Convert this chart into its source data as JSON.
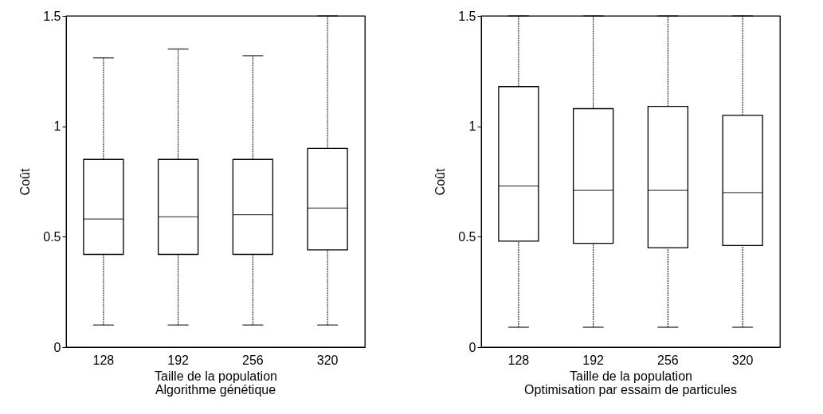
{
  "chart_data": [
    {
      "type": "box",
      "title": "Algorithme génétique",
      "xlabel": "Taille de la population",
      "ylabel": "Coût",
      "categories": [
        "128",
        "192",
        "256",
        "320"
      ],
      "boxes": [
        {
          "low": 0.1,
          "q1": 0.42,
          "median": 0.58,
          "q3": 0.85,
          "high": 1.31
        },
        {
          "low": 0.1,
          "q1": 0.42,
          "median": 0.59,
          "q3": 0.85,
          "high": 1.35
        },
        {
          "low": 0.1,
          "q1": 0.42,
          "median": 0.6,
          "q3": 0.85,
          "high": 1.32
        },
        {
          "low": 0.1,
          "q1": 0.44,
          "median": 0.63,
          "q3": 0.9,
          "high": 1.5
        }
      ],
      "ylim": [
        0,
        1.5
      ],
      "yticks": [
        0,
        0.5,
        1,
        1.5
      ],
      "grid": false
    },
    {
      "type": "box",
      "title": "Optimisation par essaim de particules",
      "xlabel": "Taille de la population",
      "ylabel": "Coût",
      "categories": [
        "128",
        "192",
        "256",
        "320"
      ],
      "boxes": [
        {
          "low": 0.09,
          "q1": 0.48,
          "median": 0.73,
          "q3": 1.18,
          "high": 1.5
        },
        {
          "low": 0.09,
          "q1": 0.47,
          "median": 0.71,
          "q3": 1.08,
          "high": 1.5
        },
        {
          "low": 0.09,
          "q1": 0.45,
          "median": 0.71,
          "q3": 1.09,
          "high": 1.5
        },
        {
          "low": 0.09,
          "q1": 0.46,
          "median": 0.7,
          "q3": 1.05,
          "high": 1.5
        }
      ],
      "ylim": [
        0,
        1.5
      ],
      "yticks": [
        0,
        0.5,
        1,
        1.5
      ],
      "grid": false
    }
  ]
}
